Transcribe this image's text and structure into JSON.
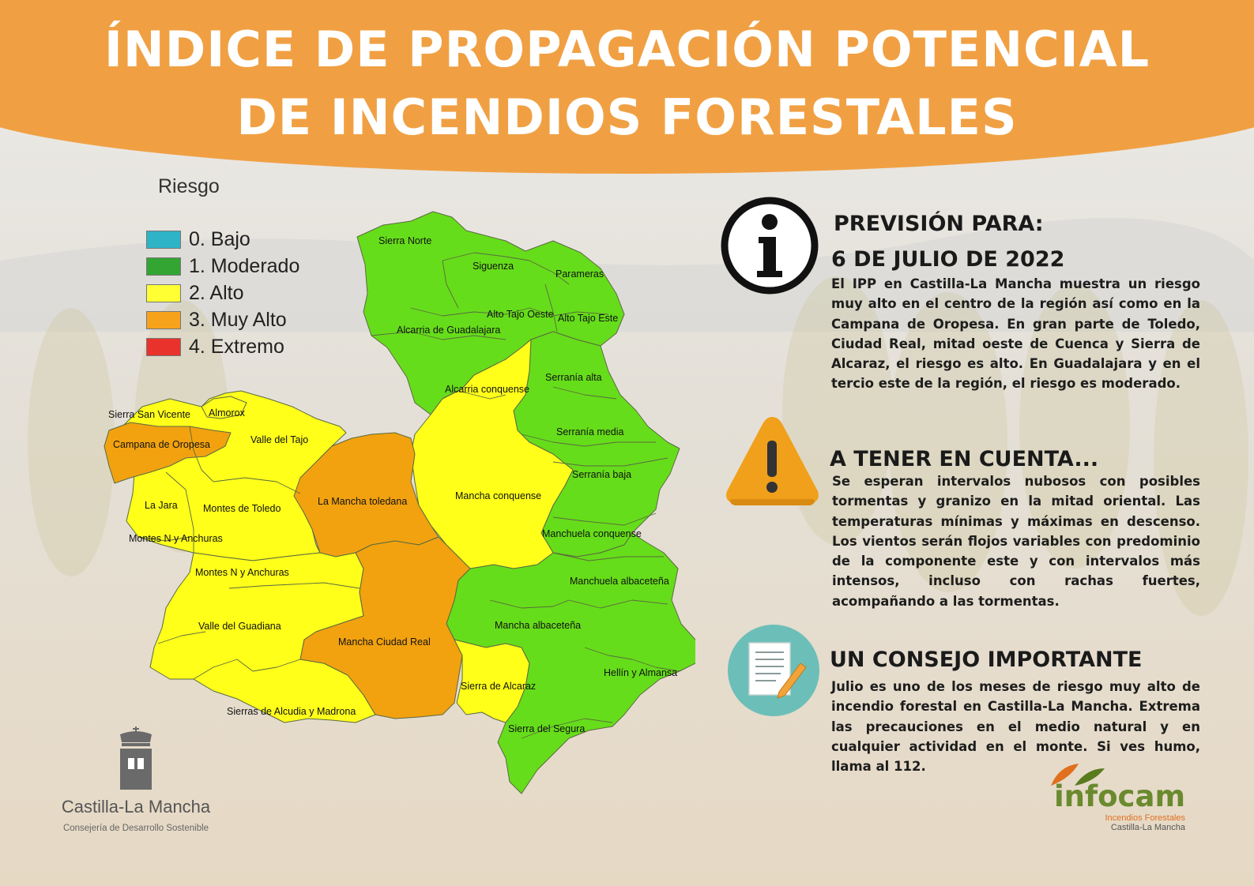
{
  "title": {
    "line1": "ÍNDICE DE PROPAGACIÓN POTENCIAL",
    "line2": "DE INCENDIOS FORESTALES"
  },
  "colors": {
    "banner": "#f0a043",
    "bajo": "#2fb3c7",
    "moderado": "#33a532",
    "alto": "#ffff33",
    "muy_alto": "#f7a21b",
    "extremo": "#e8322b",
    "map_green": "#66dd1a",
    "map_yellow": "#ffff1a",
    "map_orange": "#f2a20f"
  },
  "legend": {
    "title": "Riesgo",
    "items": [
      {
        "label": "0. Bajo",
        "color": "#2fb3c7"
      },
      {
        "label": "1. Moderado",
        "color": "#33a532"
      },
      {
        "label": "2. Alto",
        "color": "#ffff33"
      },
      {
        "label": "3. Muy Alto",
        "color": "#f7a21b"
      },
      {
        "label": "4. Extremo",
        "color": "#e8322b"
      }
    ]
  },
  "regions": {
    "sierra_norte": {
      "name": "Sierra Norte",
      "level": "1. Moderado"
    },
    "siguenza": {
      "name": "Siguenza",
      "level": "1. Moderado"
    },
    "parameras": {
      "name": "Parameras",
      "level": "1. Moderado"
    },
    "alto_tajo_oeste": {
      "name": "Alto Tajo Oeste",
      "level": "1. Moderado"
    },
    "alto_tajo_este": {
      "name": "Alto Tajo Este",
      "level": "1. Moderado"
    },
    "alcarria_guadalajara": {
      "name": "Alcarria de Guadalajara",
      "level": "1. Moderado"
    },
    "serrania_alta": {
      "name": "Serranía alta",
      "level": "1. Moderado"
    },
    "alcarria_conquense": {
      "name": "Alcarria conquense",
      "level": "2. Alto"
    },
    "serrania_media": {
      "name": "Serranía media",
      "level": "1. Moderado"
    },
    "serrania_baja": {
      "name": "Serranía baja",
      "level": "1. Moderado"
    },
    "sierra_san_vicente": {
      "name": "Sierra San Vicente",
      "level": "2. Alto"
    },
    "almorox": {
      "name": "Almorox",
      "level": "2. Alto"
    },
    "campana_oropesa": {
      "name": "Campana de Oropesa",
      "level": "3. Muy Alto"
    },
    "valle_tajo": {
      "name": "Valle del Tajo",
      "level": "2. Alto"
    },
    "la_jara": {
      "name": "La Jara",
      "level": "2. Alto"
    },
    "montes_toledo": {
      "name": "Montes de Toledo",
      "level": "2. Alto"
    },
    "montes_n_anchuras_1": {
      "name": "Montes N y Anchuras",
      "level": "2. Alto"
    },
    "la_mancha_toledana": {
      "name": "La Mancha toledana",
      "level": "3. Muy Alto"
    },
    "mancha_conquense": {
      "name": "Mancha conquense",
      "level": "2. Alto"
    },
    "manchuela_conquense": {
      "name": "Manchuela conquense",
      "level": "1. Moderado"
    },
    "montes_n_anchuras_2": {
      "name": "Montes N y Anchuras",
      "level": "2. Alto"
    },
    "manchuela_albacetena": {
      "name": "Manchuela albaceteña",
      "level": "1. Moderado"
    },
    "valle_guadiana": {
      "name": "Valle del Guadiana",
      "level": "2. Alto"
    },
    "mancha_albacetena": {
      "name": "Mancha albaceteña",
      "level": "1. Moderado"
    },
    "mancha_ciudad_real": {
      "name": "Mancha Ciudad Real",
      "level": "3. Muy Alto"
    },
    "hellin_almansa": {
      "name": "Hellín y Almansa",
      "level": "1. Moderado"
    },
    "sierra_alcaraz": {
      "name": "Sierra de Alcaraz",
      "level": "2. Alto"
    },
    "sierras_alcudia": {
      "name": "Sierras de Alcudia y Madrona",
      "level": "2. Alto"
    },
    "sierra_segura": {
      "name": "Sierra del Segura",
      "level": "1. Moderado"
    }
  },
  "forecast": {
    "heading": "PREVISIÓN PARA:",
    "date": "6 DE JULIO DE 2022",
    "text": "El IPP en Castilla-La Mancha muestra un riesgo muy alto en el centro de la región así como en la Campana de Oropesa. En gran parte de Toledo, Ciudad Real, mitad oeste de Cuenca y Sierra de Alcaraz, el riesgo es alto. En Guadalajara y en el tercio este de la región, el riesgo es moderado.",
    "icon": "info-icon"
  },
  "notice": {
    "heading": "A TENER EN CUENTA...",
    "text": "Se esperan intervalos nubosos con posibles tormentas y granizo en la mitad oriental. Las temperaturas mínimas y máximas en descenso. Los vientos serán flojos variables con predominio de la componente este y con intervalos más intensos, incluso con rachas fuertes, acompañando a las tormentas.",
    "icon": "warning-icon"
  },
  "advice": {
    "heading": "UN CONSEJO IMPORTANTE",
    "text": "Julio es uno de los meses de riesgo muy alto de incendio forestal en Castilla-La Mancha. Extrema las precauciones en el medio natural y en cualquier actividad en el monte. Si ves humo, llama al 112.",
    "icon": "document-icon"
  },
  "logos": {
    "clm_name": "Castilla-La Mancha",
    "clm_sub": "Consejería de Desarrollo Sostenible",
    "infocam_name": "infocam",
    "infocam_sub1": "Incendios Forestales",
    "infocam_sub2": "Castilla-La Mancha"
  }
}
